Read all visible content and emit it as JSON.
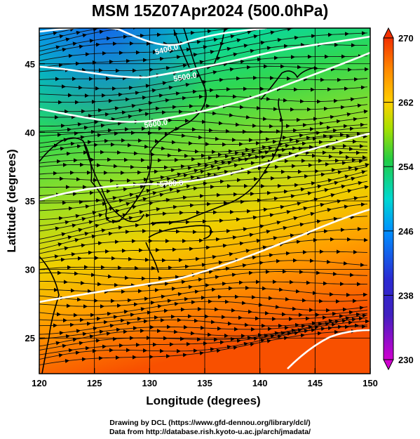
{
  "title": "MSM 15Z07Apr2024 (500.0hPa)",
  "map": {
    "xlabel": "Longitude (degrees)",
    "ylabel": "Latitude  (degrees)",
    "xlim": [
      120,
      150
    ],
    "ylim": [
      22.4,
      47.6
    ],
    "xticks": [
      "120",
      "125",
      "130",
      "135",
      "140",
      "145",
      "150"
    ],
    "yticks": [
      "25",
      "30",
      "35",
      "40",
      "45"
    ],
    "contours": [
      {
        "label": "5400.0",
        "level": 5400
      },
      {
        "label": "5500.0",
        "level": 5500
      },
      {
        "label": "5600.0",
        "level": 5600
      },
      {
        "label": "5700.0",
        "level": 5700
      }
    ]
  },
  "colorbar": {
    "min": 230,
    "max": 270,
    "tick_labels": [
      "270",
      "262",
      "254",
      "246",
      "238",
      "230"
    ],
    "colors": [
      "#d000d0",
      "#2a2ad2",
      "#0090ff",
      "#00d8d0",
      "#22cc44",
      "#a8e000",
      "#ffd000",
      "#ff8a00",
      "#f23000"
    ]
  },
  "credits": {
    "line1": "Drawing by DCL (https://www.gfd-dennou.org/library/dcl/)",
    "line2": "Data from http://database.rish.kyoto-u.ac.jp/arch/jmadata/"
  }
}
